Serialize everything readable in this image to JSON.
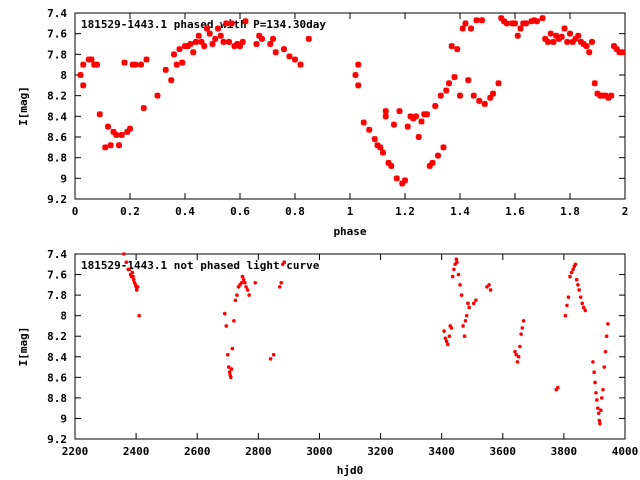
{
  "chart_data": [
    {
      "type": "scatter",
      "title": "181529-1443.1 phased with P=134.30day",
      "xlabel": "phase",
      "ylabel": "I[mag]",
      "xlim": [
        0,
        2
      ],
      "ylim": [
        9.2,
        7.4
      ],
      "y_inverted": true,
      "grid": false,
      "marker": "star",
      "color": "#ff0000",
      "xticks": [
        "0",
        "0.2",
        "0.4",
        "0.6",
        "0.8",
        "1",
        "1.2",
        "1.4",
        "1.6",
        "1.8",
        "2"
      ],
      "yticks": [
        "7.4",
        "7.6",
        "7.8",
        "8",
        "8.2",
        "8.4",
        "8.6",
        "8.8",
        "9",
        "9.2"
      ],
      "points": [
        [
          0.02,
          8.0
        ],
        [
          0.03,
          7.9
        ],
        [
          0.03,
          8.1
        ],
        [
          0.05,
          7.85
        ],
        [
          0.06,
          7.85
        ],
        [
          0.07,
          7.9
        ],
        [
          0.08,
          7.9
        ],
        [
          0.09,
          8.38
        ],
        [
          0.11,
          8.7
        ],
        [
          0.12,
          8.5
        ],
        [
          0.13,
          8.68
        ],
        [
          0.14,
          8.55
        ],
        [
          0.15,
          8.58
        ],
        [
          0.16,
          8.68
        ],
        [
          0.17,
          8.58
        ],
        [
          0.18,
          7.88
        ],
        [
          0.19,
          8.55
        ],
        [
          0.2,
          8.52
        ],
        [
          0.21,
          7.9
        ],
        [
          0.22,
          7.9
        ],
        [
          0.24,
          7.9
        ],
        [
          0.25,
          8.32
        ],
        [
          0.26,
          7.85
        ],
        [
          0.3,
          8.2
        ],
        [
          0.33,
          7.95
        ],
        [
          0.35,
          8.05
        ],
        [
          0.36,
          7.8
        ],
        [
          0.37,
          7.9
        ],
        [
          0.38,
          7.75
        ],
        [
          0.39,
          7.88
        ],
        [
          0.4,
          7.72
        ],
        [
          0.41,
          7.72
        ],
        [
          0.42,
          7.7
        ],
        [
          0.43,
          7.78
        ],
        [
          0.44,
          7.68
        ],
        [
          0.45,
          7.62
        ],
        [
          0.46,
          7.68
        ],
        [
          0.47,
          7.72
        ],
        [
          0.48,
          7.55
        ],
        [
          0.49,
          7.6
        ],
        [
          0.5,
          7.7
        ],
        [
          0.51,
          7.65
        ],
        [
          0.52,
          7.55
        ],
        [
          0.53,
          7.62
        ],
        [
          0.54,
          7.68
        ],
        [
          0.55,
          7.5
        ],
        [
          0.56,
          7.68
        ],
        [
          0.57,
          7.5
        ],
        [
          0.58,
          7.72
        ],
        [
          0.59,
          7.7
        ],
        [
          0.6,
          7.72
        ],
        [
          0.61,
          7.68
        ],
        [
          0.62,
          7.48
        ],
        [
          0.66,
          7.7
        ],
        [
          0.67,
          7.62
        ],
        [
          0.68,
          7.65
        ],
        [
          0.71,
          7.7
        ],
        [
          0.72,
          7.65
        ],
        [
          0.73,
          7.78
        ],
        [
          0.76,
          7.75
        ],
        [
          0.78,
          7.82
        ],
        [
          0.8,
          7.85
        ],
        [
          0.82,
          7.9
        ],
        [
          0.85,
          7.65
        ],
        [
          1.02,
          8.0
        ],
        [
          1.03,
          7.9
        ],
        [
          1.03,
          8.1
        ],
        [
          1.05,
          8.46
        ],
        [
          1.07,
          8.53
        ],
        [
          1.09,
          8.62
        ],
        [
          1.1,
          8.68
        ],
        [
          1.11,
          8.7
        ],
        [
          1.12,
          8.75
        ],
        [
          1.13,
          8.4
        ],
        [
          1.13,
          8.35
        ],
        [
          1.14,
          8.85
        ],
        [
          1.15,
          8.88
        ],
        [
          1.16,
          8.48
        ],
        [
          1.17,
          9.0
        ],
        [
          1.18,
          8.35
        ],
        [
          1.19,
          9.05
        ],
        [
          1.2,
          9.02
        ],
        [
          1.21,
          8.5
        ],
        [
          1.22,
          8.4
        ],
        [
          1.23,
          8.42
        ],
        [
          1.24,
          8.4
        ],
        [
          1.25,
          8.6
        ],
        [
          1.26,
          8.45
        ],
        [
          1.27,
          8.38
        ],
        [
          1.28,
          8.38
        ],
        [
          1.29,
          8.88
        ],
        [
          1.3,
          8.85
        ],
        [
          1.31,
          8.3
        ],
        [
          1.32,
          8.78
        ],
        [
          1.33,
          8.2
        ],
        [
          1.34,
          8.7
        ],
        [
          1.35,
          8.15
        ],
        [
          1.36,
          8.08
        ],
        [
          1.37,
          7.72
        ],
        [
          1.38,
          8.02
        ],
        [
          1.39,
          7.75
        ],
        [
          1.4,
          8.2
        ],
        [
          1.41,
          7.55
        ],
        [
          1.42,
          7.5
        ],
        [
          1.43,
          8.05
        ],
        [
          1.44,
          7.55
        ],
        [
          1.45,
          8.2
        ],
        [
          1.46,
          7.47
        ],
        [
          1.47,
          8.25
        ],
        [
          1.48,
          7.47
        ],
        [
          1.49,
          8.28
        ],
        [
          1.51,
          8.22
        ],
        [
          1.52,
          8.18
        ],
        [
          1.54,
          8.08
        ],
        [
          1.55,
          7.45
        ],
        [
          1.56,
          7.48
        ],
        [
          1.57,
          7.5
        ],
        [
          1.59,
          7.5
        ],
        [
          1.6,
          7.5
        ],
        [
          1.61,
          7.62
        ],
        [
          1.62,
          7.55
        ],
        [
          1.63,
          7.5
        ],
        [
          1.64,
          7.5
        ],
        [
          1.66,
          7.48
        ],
        [
          1.67,
          7.47
        ],
        [
          1.68,
          7.48
        ],
        [
          1.7,
          7.45
        ],
        [
          1.71,
          7.65
        ],
        [
          1.72,
          7.68
        ],
        [
          1.73,
          7.6
        ],
        [
          1.74,
          7.68
        ],
        [
          1.75,
          7.62
        ],
        [
          1.76,
          7.65
        ],
        [
          1.77,
          7.63
        ],
        [
          1.78,
          7.55
        ],
        [
          1.79,
          7.68
        ],
        [
          1.8,
          7.6
        ],
        [
          1.81,
          7.68
        ],
        [
          1.82,
          7.65
        ],
        [
          1.83,
          7.62
        ],
        [
          1.84,
          7.68
        ],
        [
          1.85,
          7.7
        ],
        [
          1.86,
          7.72
        ],
        [
          1.87,
          7.78
        ],
        [
          1.88,
          7.68
        ],
        [
          1.89,
          8.08
        ],
        [
          1.9,
          8.18
        ],
        [
          1.91,
          8.2
        ],
        [
          1.92,
          8.2
        ],
        [
          1.93,
          8.2
        ],
        [
          1.94,
          8.22
        ],
        [
          1.95,
          8.2
        ],
        [
          1.96,
          7.72
        ],
        [
          1.97,
          7.75
        ],
        [
          1.98,
          7.78
        ],
        [
          1.99,
          7.78
        ]
      ]
    },
    {
      "type": "scatter",
      "title": "181529-1443.1 not phased light curve",
      "xlabel": "hjd0",
      "ylabel": "I[mag]",
      "xlim": [
        2200,
        4000
      ],
      "ylim": [
        9.2,
        7.4
      ],
      "y_inverted": true,
      "grid": false,
      "marker": "dot",
      "color": "#ff0000",
      "xticks": [
        "2200",
        "2400",
        "2600",
        "2800",
        "3000",
        "3200",
        "3400",
        "3600",
        "3800",
        "4000"
      ],
      "yticks": [
        "7.4",
        "7.6",
        "7.8",
        "8",
        "8.2",
        "8.4",
        "8.6",
        "8.8",
        "9",
        "9.2"
      ],
      "points": [
        [
          2360,
          7.4
        ],
        [
          2368,
          7.48
        ],
        [
          2374,
          7.55
        ],
        [
          2378,
          7.55
        ],
        [
          2382,
          7.6
        ],
        [
          2385,
          7.62
        ],
        [
          2388,
          7.58
        ],
        [
          2390,
          7.62
        ],
        [
          2392,
          7.65
        ],
        [
          2395,
          7.68
        ],
        [
          2398,
          7.7
        ],
        [
          2400,
          7.72
        ],
        [
          2402,
          7.75
        ],
        [
          2405,
          7.72
        ],
        [
          2410,
          8.0
        ],
        [
          2690,
          7.98
        ],
        [
          2695,
          8.1
        ],
        [
          2700,
          8.38
        ],
        [
          2703,
          8.5
        ],
        [
          2706,
          8.55
        ],
        [
          2708,
          8.58
        ],
        [
          2710,
          8.6
        ],
        [
          2712,
          8.52
        ],
        [
          2715,
          8.32
        ],
        [
          2720,
          8.05
        ],
        [
          2725,
          7.85
        ],
        [
          2730,
          7.8
        ],
        [
          2735,
          7.72
        ],
        [
          2740,
          7.7
        ],
        [
          2745,
          7.68
        ],
        [
          2748,
          7.62
        ],
        [
          2752,
          7.65
        ],
        [
          2756,
          7.68
        ],
        [
          2760,
          7.72
        ],
        [
          2765,
          7.75
        ],
        [
          2770,
          7.8
        ],
        [
          2790,
          7.68
        ],
        [
          2840,
          8.42
        ],
        [
          2850,
          8.38
        ],
        [
          2870,
          7.72
        ],
        [
          2875,
          7.68
        ],
        [
          2880,
          7.5
        ],
        [
          2885,
          7.48
        ],
        [
          3408,
          8.15
        ],
        [
          3412,
          8.22
        ],
        [
          3416,
          8.25
        ],
        [
          3420,
          8.28
        ],
        [
          3425,
          8.2
        ],
        [
          3428,
          8.1
        ],
        [
          3432,
          8.12
        ],
        [
          3436,
          7.62
        ],
        [
          3440,
          7.55
        ],
        [
          3444,
          7.5
        ],
        [
          3448,
          7.45
        ],
        [
          3450,
          7.48
        ],
        [
          3455,
          7.6
        ],
        [
          3460,
          7.7
        ],
        [
          3465,
          7.8
        ],
        [
          3470,
          8.1
        ],
        [
          3475,
          8.2
        ],
        [
          3478,
          8.05
        ],
        [
          3482,
          8.0
        ],
        [
          3486,
          7.88
        ],
        [
          3490,
          7.92
        ],
        [
          3505,
          7.88
        ],
        [
          3512,
          7.85
        ],
        [
          3548,
          7.72
        ],
        [
          3555,
          7.7
        ],
        [
          3560,
          7.75
        ],
        [
          3640,
          8.35
        ],
        [
          3644,
          8.38
        ],
        [
          3648,
          8.45
        ],
        [
          3652,
          8.4
        ],
        [
          3656,
          8.3
        ],
        [
          3660,
          8.18
        ],
        [
          3664,
          8.12
        ],
        [
          3668,
          8.05
        ],
        [
          3775,
          8.72
        ],
        [
          3780,
          8.7
        ],
        [
          3805,
          8.0
        ],
        [
          3810,
          7.9
        ],
        [
          3815,
          7.82
        ],
        [
          3820,
          7.62
        ],
        [
          3825,
          7.58
        ],
        [
          3830,
          7.55
        ],
        [
          3834,
          7.52
        ],
        [
          3838,
          7.5
        ],
        [
          3842,
          7.65
        ],
        [
          3846,
          7.7
        ],
        [
          3850,
          7.75
        ],
        [
          3855,
          7.82
        ],
        [
          3860,
          7.88
        ],
        [
          3865,
          7.92
        ],
        [
          3870,
          7.95
        ],
        [
          3895,
          8.45
        ],
        [
          3899,
          8.55
        ],
        [
          3902,
          8.65
        ],
        [
          3905,
          8.75
        ],
        [
          3908,
          8.82
        ],
        [
          3911,
          8.9
        ],
        [
          3914,
          8.95
        ],
        [
          3916,
          9.02
        ],
        [
          3918,
          9.05
        ],
        [
          3921,
          8.92
        ],
        [
          3924,
          8.8
        ],
        [
          3928,
          8.72
        ],
        [
          3932,
          8.5
        ],
        [
          3936,
          8.35
        ],
        [
          3940,
          8.2
        ],
        [
          3944,
          8.08
        ]
      ]
    }
  ]
}
